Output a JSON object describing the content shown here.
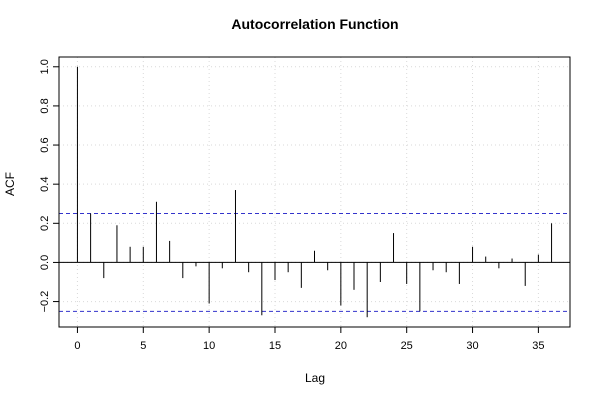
{
  "chart_data": {
    "type": "bar",
    "title": "Autocorrelation Function",
    "xlabel": "Lag",
    "ylabel": "ACF",
    "xlim": [
      -1.4,
      37.4
    ],
    "ylim": [
      -0.33,
      1.05
    ],
    "x_ticks": [
      0,
      5,
      10,
      15,
      20,
      25,
      30,
      35
    ],
    "y_ticks": [
      -0.2,
      0.0,
      0.2,
      0.4,
      0.6,
      0.8,
      1.0
    ],
    "y_tick_labels": [
      "−0.2",
      "0.0",
      "0.2",
      "0.4",
      "0.6",
      "0.8",
      "1.0"
    ],
    "grid": true,
    "confidence_bounds": [
      0.25,
      -0.25
    ],
    "colors": {
      "bars": "#000000",
      "confidence": "#3333cc",
      "grid": "#d9d9d9",
      "zero_line": "#000000"
    },
    "lags": [
      0,
      1,
      2,
      3,
      4,
      5,
      6,
      7,
      8,
      9,
      10,
      11,
      12,
      13,
      14,
      15,
      16,
      17,
      18,
      19,
      20,
      21,
      22,
      23,
      24,
      25,
      26,
      27,
      28,
      29,
      30,
      31,
      32,
      33,
      34,
      35,
      36
    ],
    "values": [
      1.0,
      0.25,
      -0.08,
      0.19,
      0.08,
      0.08,
      0.31,
      0.11,
      -0.08,
      -0.02,
      -0.21,
      -0.03,
      0.37,
      -0.05,
      -0.27,
      -0.09,
      -0.05,
      -0.13,
      0.06,
      -0.04,
      -0.22,
      -0.14,
      -0.28,
      -0.1,
      0.15,
      -0.11,
      -0.25,
      -0.04,
      -0.05,
      -0.11,
      0.08,
      0.03,
      -0.03,
      0.02,
      -0.12,
      0.04,
      0.2
    ]
  }
}
